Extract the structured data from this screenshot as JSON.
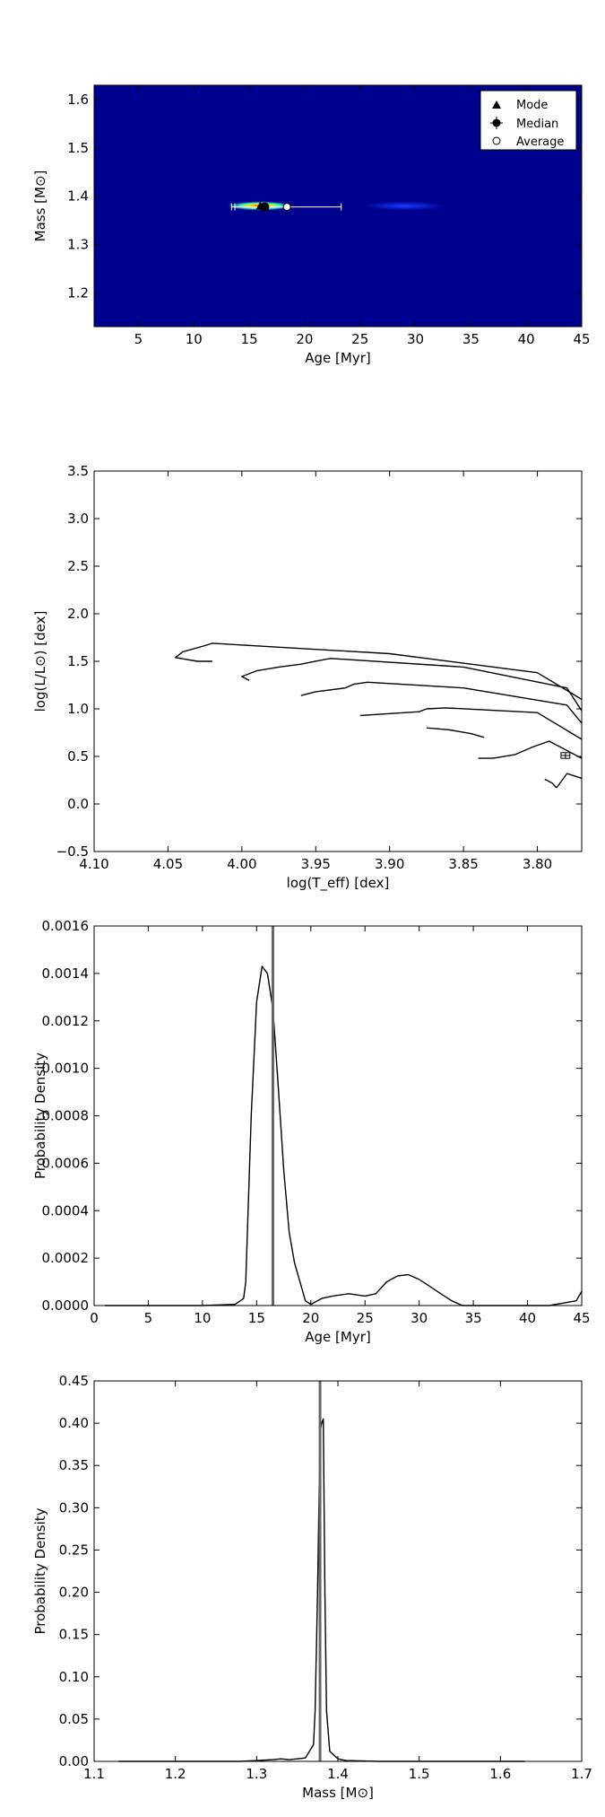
{
  "chart_data": [
    {
      "type": "heatmap",
      "xlabel": "Age [Myr]",
      "ylabel": "Mass [M⊙]",
      "xlim": [
        1,
        45
      ],
      "ylim": [
        1.13,
        1.63
      ],
      "x_ticks": [
        5,
        10,
        15,
        20,
        25,
        30,
        35,
        40,
        45
      ],
      "y_ticks": [
        1.2,
        1.3,
        1.4,
        1.5,
        1.6
      ],
      "y_tick_labels": [
        "1.2",
        "1.3",
        "1.4",
        "1.5",
        "1.6"
      ],
      "background_color": "#00008f",
      "density_hotspots": [
        {
          "x": 16.0,
          "y": 1.38,
          "level": "high"
        },
        {
          "x": 29.0,
          "y": 1.38,
          "level": "low"
        }
      ],
      "markers": {
        "mode": {
          "x": 16.0,
          "y": 1.38
        },
        "median": {
          "x": 16.4,
          "y": 1.378,
          "x_err": [
            13.4,
            18.4
          ]
        },
        "average": {
          "x": 18.4,
          "y": 1.378,
          "x_err": [
            13.7,
            23.3
          ]
        }
      },
      "legend": {
        "position": "top-right",
        "entries": [
          "Mode",
          "Median",
          "Average"
        ]
      }
    },
    {
      "type": "line",
      "xlabel": "log(T_eff) [dex]",
      "ylabel": "log(L/L⊙) [dex]",
      "xlim": [
        4.1,
        3.77
      ],
      "ylim": [
        -0.5,
        3.5
      ],
      "x_ticks": [
        4.1,
        4.05,
        4.0,
        3.95,
        3.9,
        3.85,
        3.8
      ],
      "x_tick_labels": [
        "4.10",
        "4.05",
        "4.00",
        "3.95",
        "3.90",
        "3.85",
        "3.80"
      ],
      "y_ticks": [
        -0.5,
        0.0,
        0.5,
        1.0,
        1.5,
        2.0,
        2.5,
        3.0,
        3.5
      ],
      "y_tick_labels": [
        "−0.5",
        "0.0",
        "0.5",
        "1.0",
        "1.5",
        "2.0",
        "2.5",
        "3.0",
        "3.5"
      ],
      "series": [
        {
          "x": [
            4.026,
            4.02,
            3.9,
            3.8,
            3.77
          ],
          "y": [
            1.66,
            1.69,
            1.58,
            1.38,
            1.1
          ]
        },
        {
          "x": [
            3.947,
            3.94,
            3.85,
            3.78,
            3.77
          ],
          "y": [
            1.51,
            1.53,
            1.44,
            1.22,
            0.98
          ]
        },
        {
          "x": [
            3.924,
            3.915,
            3.85,
            3.78,
            3.77
          ],
          "y": [
            1.26,
            1.28,
            1.22,
            1.04,
            0.85
          ]
        },
        {
          "x": [
            3.875,
            3.862,
            3.8,
            3.77
          ],
          "y": [
            1.0,
            1.01,
            0.96,
            0.68
          ]
        },
        {
          "x": [
            3.803,
            3.792,
            3.77
          ],
          "y": [
            0.6,
            0.66,
            0.48
          ]
        },
        {
          "x": [
            3.787,
            3.78,
            3.77
          ],
          "y": [
            0.17,
            0.32,
            0.27
          ]
        }
      ],
      "loops": [
        {
          "x": [
            4.026,
            4.04,
            4.045,
            4.03,
            4.02
          ],
          "y": [
            1.66,
            1.6,
            1.54,
            1.5,
            1.5
          ]
        },
        {
          "x": [
            3.947,
            3.96,
            3.975,
            3.99,
            4.0,
            3.995
          ],
          "y": [
            1.51,
            1.47,
            1.44,
            1.4,
            1.34,
            1.3
          ]
        },
        {
          "x": [
            3.924,
            3.93,
            3.95,
            3.96
          ],
          "y": [
            1.26,
            1.22,
            1.18,
            1.14
          ]
        },
        {
          "x": [
            3.875,
            3.88,
            3.9,
            3.92
          ],
          "y": [
            1.0,
            0.97,
            0.95,
            0.93
          ]
        },
        {
          "x": [
            3.836,
            3.845,
            3.86,
            3.875
          ],
          "y": [
            0.7,
            0.74,
            0.78,
            0.8
          ]
        },
        {
          "x": [
            3.803,
            3.815,
            3.83,
            3.84
          ],
          "y": [
            0.6,
            0.52,
            0.48,
            0.48
          ]
        },
        {
          "x": [
            3.787,
            3.79,
            3.795
          ],
          "y": [
            0.17,
            0.22,
            0.26
          ]
        }
      ],
      "observed_point": {
        "x": 3.781,
        "y": 0.51,
        "x_err": 0.003,
        "y_err": 0.03
      }
    },
    {
      "type": "line",
      "xlabel": "Age [Myr]",
      "ylabel": "Probability Density",
      "xlim": [
        0,
        45
      ],
      "ylim": [
        0,
        0.0016
      ],
      "x_ticks": [
        0,
        5,
        10,
        15,
        20,
        25,
        30,
        35,
        40,
        45
      ],
      "y_ticks": [
        0.0,
        0.0002,
        0.0004,
        0.0006,
        0.0008,
        0.001,
        0.0012,
        0.0014,
        0.0016
      ],
      "y_tick_labels": [
        "0.0000",
        "0.0002",
        "0.0004",
        "0.0006",
        "0.0008",
        "0.0010",
        "0.0012",
        "0.0014",
        "0.0016"
      ],
      "vline": 16.5,
      "series": [
        {
          "x": [
            1,
            10,
            13,
            13.5,
            13.8,
            14.0,
            14.5,
            15.0,
            15.5,
            16.0,
            16.5,
            17.0,
            17.5,
            18.0,
            18.5,
            19.0,
            19.5,
            20.0,
            21.0,
            22.0,
            23.5,
            25.0,
            26.0,
            27.0,
            28.0,
            29.0,
            30.0,
            31.0,
            32.0,
            33.0,
            34.0,
            38.0,
            42.0,
            44.5,
            45.0
          ],
          "y": [
            0.0,
            0.0,
            5e-06,
            2e-05,
            3e-05,
            0.0001,
            0.0008,
            0.00128,
            0.00143,
            0.0014,
            0.00125,
            0.00092,
            0.00057,
            0.00031,
            0.00018,
            0.0001,
            2e-05,
            5e-06,
            3e-05,
            4e-05,
            5e-05,
            4e-05,
            5e-05,
            0.0001,
            0.000125,
            0.00013,
            0.00011,
            8e-05,
            5e-05,
            2e-05,
            0.0,
            0.0,
            0.0,
            2e-05,
            6e-05
          ]
        }
      ]
    },
    {
      "type": "line",
      "xlabel": "Mass [M⊙]",
      "ylabel": "Probability Density",
      "xlim": [
        1.1,
        1.7
      ],
      "ylim": [
        0,
        0.45
      ],
      "x_ticks": [
        1.1,
        1.2,
        1.3,
        1.4,
        1.5,
        1.6,
        1.7
      ],
      "y_ticks": [
        0.0,
        0.05,
        0.1,
        0.15,
        0.2,
        0.25,
        0.3,
        0.35,
        0.4,
        0.45
      ],
      "y_tick_labels": [
        "0.00",
        "0.05",
        "0.10",
        "0.15",
        "0.20",
        "0.25",
        "0.30",
        "0.35",
        "0.40",
        "0.45"
      ],
      "vline": 1.378,
      "series": [
        {
          "x": [
            1.13,
            1.28,
            1.3,
            1.32,
            1.33,
            1.34,
            1.35,
            1.36,
            1.37,
            1.372,
            1.375,
            1.378,
            1.38,
            1.382,
            1.384,
            1.386,
            1.39,
            1.4,
            1.41,
            1.45,
            1.55,
            1.63
          ],
          "y": [
            0.0,
            0.0,
            0.001,
            0.002,
            0.003,
            0.002,
            0.003,
            0.004,
            0.02,
            0.06,
            0.2,
            0.39,
            0.4,
            0.405,
            0.2,
            0.06,
            0.012,
            0.003,
            0.001,
            0.0,
            0.0,
            0.0
          ]
        }
      ]
    }
  ]
}
